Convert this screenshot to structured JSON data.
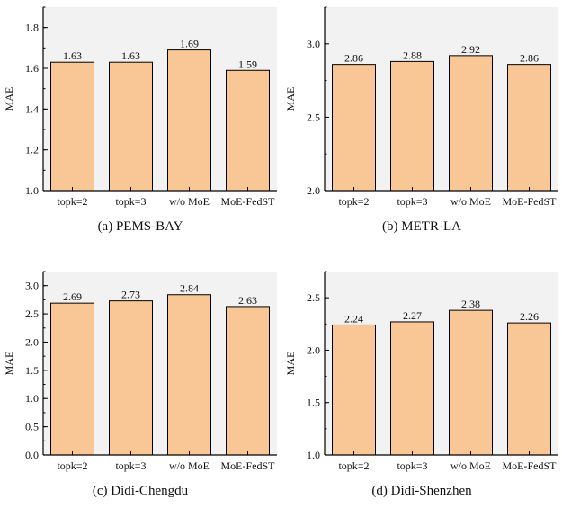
{
  "style": {
    "bar_color": "#f9c796",
    "bar_stroke": "#000000",
    "plot_bg": "#f2f2f2"
  },
  "chart_data": [
    {
      "type": "bar",
      "caption": "(a)  PEMS-BAY",
      "categories": [
        "topk=2",
        "topk=3",
        "w/o MoE",
        "MoE-FedST"
      ],
      "values": [
        1.63,
        1.63,
        1.69,
        1.59
      ],
      "value_labels": [
        "1.63",
        "1.63",
        "1.69",
        "1.59"
      ],
      "ylabel": "MAE",
      "ylim": [
        1.0,
        1.9
      ],
      "yticks": [
        1.0,
        1.2,
        1.4,
        1.6,
        1.8
      ],
      "ytick_labels": [
        "1.0",
        "1.2",
        "1.4",
        "1.6",
        "1.8"
      ],
      "minor_step": 0.1,
      "grid": false
    },
    {
      "type": "bar",
      "caption": "(b)  METR-LA",
      "categories": [
        "topk=2",
        "topk=3",
        "w/o MoE",
        "MoE-FedST"
      ],
      "values": [
        2.86,
        2.88,
        2.92,
        2.86
      ],
      "value_labels": [
        "2.86",
        "2.88",
        "2.92",
        "2.86"
      ],
      "ylabel": "MAE",
      "ylim": [
        2.0,
        3.25
      ],
      "yticks": [
        2.0,
        2.5,
        3.0
      ],
      "ytick_labels": [
        "2.0",
        "2.5",
        "3.0"
      ],
      "minor_step": 0.25,
      "grid": false
    },
    {
      "type": "bar",
      "caption": "(c)  Didi-Chengdu",
      "categories": [
        "topk=2",
        "topk=3",
        "w/o MoE",
        "MoE-FedST"
      ],
      "values": [
        2.69,
        2.73,
        2.84,
        2.63
      ],
      "value_labels": [
        "2.69",
        "2.73",
        "2.84",
        "2.63"
      ],
      "ylabel": "MAE",
      "ylim": [
        0.0,
        3.25
      ],
      "yticks": [
        0.0,
        0.5,
        1.0,
        1.5,
        2.0,
        2.5,
        3.0
      ],
      "ytick_labels": [
        "0.0",
        "0.5",
        "1.0",
        "1.5",
        "2.0",
        "2.5",
        "3.0"
      ],
      "minor_step": 0.25,
      "grid": false
    },
    {
      "type": "bar",
      "caption": "(d)  Didi-Shenzhen",
      "categories": [
        "topk=2",
        "topk=3",
        "w/o MoE",
        "MoE-FedST"
      ],
      "values": [
        2.24,
        2.27,
        2.38,
        2.26
      ],
      "value_labels": [
        "2.24",
        "2.27",
        "2.38",
        "2.26"
      ],
      "ylabel": "MAE",
      "ylim": [
        1.0,
        2.75
      ],
      "yticks": [
        1.0,
        1.5,
        2.0,
        2.5
      ],
      "ytick_labels": [
        "1.0",
        "1.5",
        "2.0",
        "2.5"
      ],
      "minor_step": 0.25,
      "grid": false
    }
  ]
}
